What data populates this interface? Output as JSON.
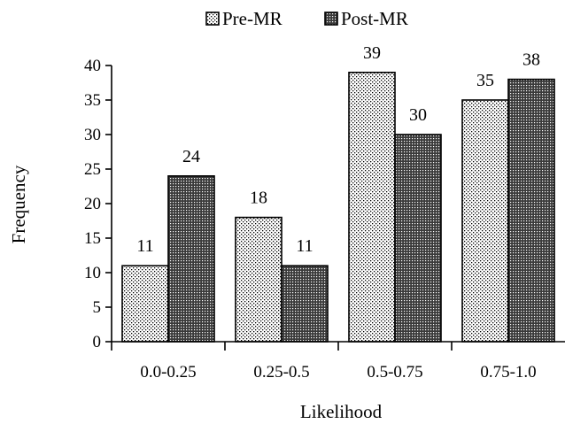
{
  "chart_data": {
    "type": "bar",
    "title": "",
    "xlabel": "Likelihood",
    "ylabel": "Frequency",
    "categories": [
      "0.0-0.25",
      "0.25-0.5",
      "0.5-0.75",
      "0.75-1.0"
    ],
    "series": [
      {
        "name": "Pre-MR",
        "values": [
          11,
          18,
          39,
          35
        ],
        "pattern": "light-dots",
        "color": "#ffffff"
      },
      {
        "name": "Post-MR",
        "values": [
          24,
          11,
          30,
          38
        ],
        "pattern": "dark-crosshatch",
        "color": "#000000"
      }
    ],
    "ylim": [
      0,
      40
    ],
    "yticks": [
      0,
      5,
      10,
      15,
      20,
      25,
      30,
      35,
      40
    ],
    "grid": false,
    "legend_position": "top",
    "data_labels": true
  }
}
